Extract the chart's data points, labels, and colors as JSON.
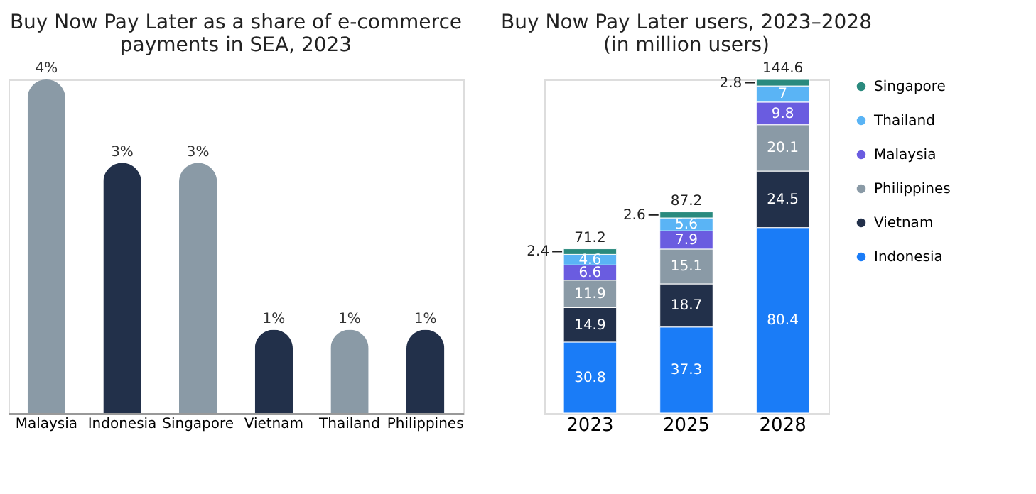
{
  "chart_data": [
    {
      "type": "bar",
      "title": "Buy Now Pay Later as a share of e-commerce\npayments in SEA, 2023",
      "categories": [
        "Malaysia",
        "Indonesia",
        "Singapore",
        "Vietnam",
        "Thailand",
        "Philippines"
      ],
      "values": [
        4,
        3,
        3,
        1,
        1,
        1
      ],
      "value_labels": [
        "4%",
        "3%",
        "3%",
        "1%",
        "1%",
        "1%"
      ],
      "colors": [
        "#8a9aa6",
        "#22304a",
        "#8a9aa6",
        "#22304a",
        "#8a9aa6",
        "#22304a"
      ],
      "legend": false
    },
    {
      "type": "bar",
      "stacked": true,
      "title": "Buy Now Pay Later users, 2023–2028\n(in million users)",
      "categories": [
        "2023",
        "2025",
        "2028"
      ],
      "series": [
        {
          "name": "Indonesia",
          "color": "#1a7cf7",
          "values": [
            30.8,
            37.3,
            80.4
          ]
        },
        {
          "name": "Vietnam",
          "color": "#22304a",
          "values": [
            14.9,
            18.7,
            24.5
          ]
        },
        {
          "name": "Philippines",
          "color": "#8a9aa6",
          "values": [
            11.9,
            15.1,
            20.1
          ]
        },
        {
          "name": "Malaysia",
          "color": "#6a5ce0",
          "values": [
            6.6,
            7.9,
            9.8
          ]
        },
        {
          "name": "Thailand",
          "color": "#5ab4f5",
          "values": [
            4.6,
            5.6,
            7
          ]
        },
        {
          "name": "Singapore",
          "color": "#2a8a7e",
          "values": [
            2.4,
            2.6,
            2.8
          ]
        }
      ],
      "data_labels": true,
      "totals": [
        "71.2",
        "87.2",
        "144.6"
      ],
      "legend": "right"
    }
  ]
}
